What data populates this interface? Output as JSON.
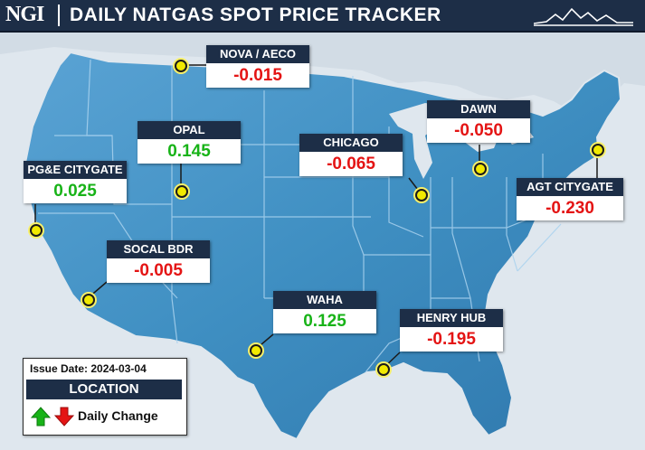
{
  "header": {
    "logo": "NGI",
    "title": "DAILY NATGAS SPOT PRICE TRACKER"
  },
  "hubs": [
    {
      "id": "nova-aeco",
      "name": "NOVA / AECO",
      "change": "-0.015",
      "direction": "down"
    },
    {
      "id": "opal",
      "name": "OPAL",
      "change": "0.145",
      "direction": "up"
    },
    {
      "id": "dawn",
      "name": "DAWN",
      "change": "-0.050",
      "direction": "down"
    },
    {
      "id": "chicago",
      "name": "CHICAGO",
      "change": "-0.065",
      "direction": "down"
    },
    {
      "id": "pge-citygate",
      "name": "PG&E CITYGATE",
      "change": "0.025",
      "direction": "up"
    },
    {
      "id": "agt-citygate",
      "name": "AGT CITYGATE",
      "change": "-0.230",
      "direction": "down"
    },
    {
      "id": "socal-bdr",
      "name": "SOCAL BDR",
      "change": "-0.005",
      "direction": "down"
    },
    {
      "id": "waha",
      "name": "WAHA",
      "change": "0.125",
      "direction": "up"
    },
    {
      "id": "henry-hub",
      "name": "HENRY HUB",
      "change": "-0.195",
      "direction": "down"
    }
  ],
  "legend": {
    "issue_date": "Issue Date: 2024-03-04",
    "location_label": "LOCATION",
    "change_label": "Daily Change",
    "up_icon": "green-up-arrow-icon",
    "down_icon": "red-down-arrow-icon"
  },
  "colors": {
    "header_bg": "#1d2e47",
    "positive": "#18b318",
    "negative": "#e41414",
    "marker": "#f1e900",
    "map_land": "#3f8fc2"
  }
}
